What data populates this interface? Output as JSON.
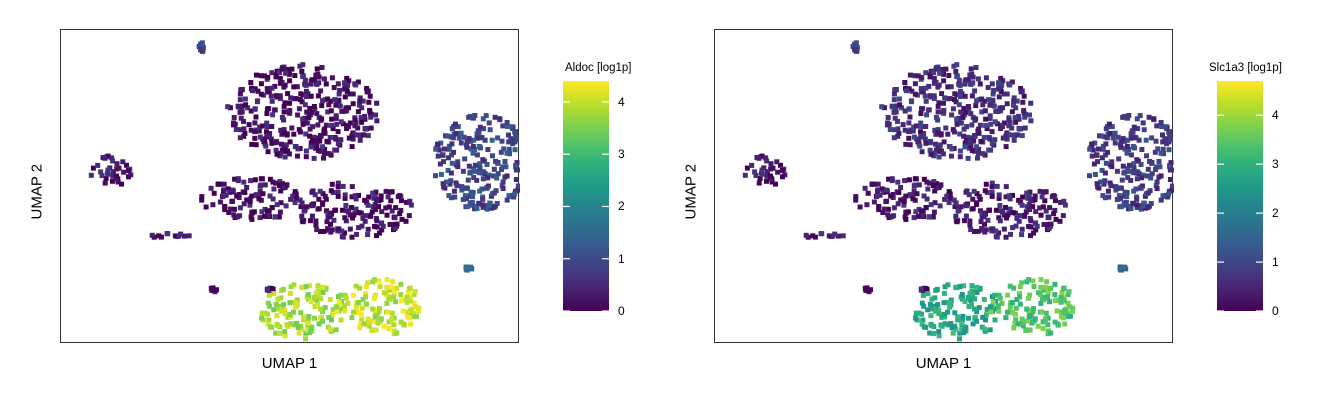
{
  "chart_data": [
    {
      "type": "scatter",
      "title": "",
      "xlabel": "UMAP 1",
      "ylabel": "UMAP 2",
      "colorbar": {
        "title": "Aldoc [log1p]",
        "ticks": [
          "0",
          "1",
          "2",
          "3",
          "4"
        ],
        "range": [
          0,
          4.4
        ],
        "colormap": "viridis"
      },
      "clusters": [
        {
          "name": "",
          "x": -2.5,
          "y": 6.2,
          "value": 1.0
        },
        {
          "name": "",
          "x": 1.5,
          "y": 3.2,
          "value": 0.2
        },
        {
          "name": "",
          "x": -6.0,
          "y": 0.5,
          "value": 0.3
        },
        {
          "name": "",
          "x": -0.5,
          "y": -0.8,
          "value": 0.2
        },
        {
          "name": "",
          "x": 3.5,
          "y": -1.3,
          "value": 0.2
        },
        {
          "name": "",
          "x": 8.5,
          "y": 0.9,
          "value": 0.9
        },
        {
          "name": "",
          "x": -3.8,
          "y": -2.5,
          "value": 0.2
        },
        {
          "name": "",
          "x": 8.0,
          "y": -4.0,
          "value": 1.5
        },
        {
          "name": "",
          "x": -2.0,
          "y": -5.0,
          "value": 0.3
        },
        {
          "name": "",
          "x": 0.2,
          "y": -5.0,
          "value": 0.2
        },
        {
          "name": "",
          "x": 1.5,
          "y": -6.0,
          "value": 3.8
        },
        {
          "name": "",
          "x": 4.5,
          "y": -5.8,
          "value": 4.0
        }
      ]
    },
    {
      "type": "scatter",
      "title": "",
      "xlabel": "UMAP 1",
      "ylabel": "UMAP 2",
      "colorbar": {
        "title": "Slc1a3 [log1p]",
        "ticks": [
          "0",
          "1",
          "2",
          "3",
          "4"
        ],
        "range": [
          0,
          4.7
        ],
        "colormap": "viridis"
      },
      "clusters": [
        {
          "name": "",
          "x": -2.5,
          "y": 6.2,
          "value": 1.0
        },
        {
          "name": "",
          "x": 1.5,
          "y": 3.2,
          "value": 0.6
        },
        {
          "name": "",
          "x": -6.0,
          "y": 0.5,
          "value": 0.3
        },
        {
          "name": "",
          "x": -0.5,
          "y": -0.8,
          "value": 0.3
        },
        {
          "name": "",
          "x": 3.5,
          "y": -1.3,
          "value": 0.4
        },
        {
          "name": "",
          "x": 8.5,
          "y": 0.9,
          "value": 0.8
        },
        {
          "name": "",
          "x": -3.8,
          "y": -2.5,
          "value": 0.3
        },
        {
          "name": "",
          "x": 8.0,
          "y": -4.0,
          "value": 1.5
        },
        {
          "name": "",
          "x": -2.0,
          "y": -5.0,
          "value": 0.3
        },
        {
          "name": "",
          "x": 0.2,
          "y": -5.0,
          "value": 0.3
        },
        {
          "name": "",
          "x": 1.5,
          "y": -6.0,
          "value": 2.8
        },
        {
          "name": "",
          "x": 4.5,
          "y": -5.8,
          "value": 3.4
        }
      ]
    }
  ]
}
